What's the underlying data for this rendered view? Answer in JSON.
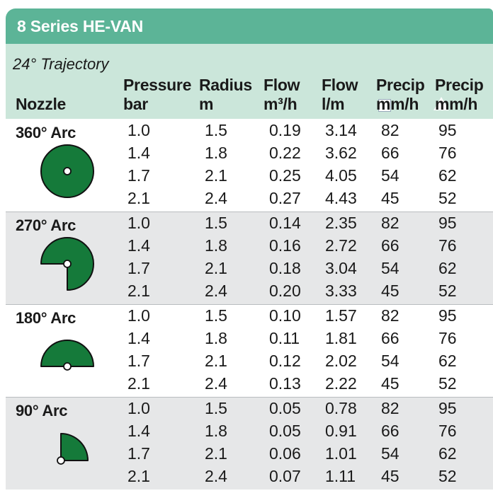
{
  "title": "8 Series HE-VAN",
  "trajectory": "24° Trajectory",
  "headers": {
    "nozzle": "Nozzle",
    "pressure": [
      "Pressure",
      "bar"
    ],
    "radius": [
      "Radius",
      "m"
    ],
    "flow_m3": [
      "Flow",
      "m³/h"
    ],
    "flow_lm": [
      "Flow",
      "l/m"
    ],
    "precip_square": [
      "Precip",
      "mm/h"
    ],
    "precip_triangle": [
      "Precip",
      "mm/h"
    ]
  },
  "groups": [
    {
      "label": "360° Arc",
      "icon": "full-circle-nozzle-icon",
      "rows": [
        [
          "1.0",
          "1.5",
          "0.19",
          "3.14",
          "82",
          "95"
        ],
        [
          "1.4",
          "1.8",
          "0.22",
          "3.62",
          "66",
          "76"
        ],
        [
          "1.7",
          "2.1",
          "0.25",
          "4.05",
          "54",
          "62"
        ],
        [
          "2.1",
          "2.4",
          "0.27",
          "4.43",
          "45",
          "52"
        ]
      ]
    },
    {
      "label": "270° Arc",
      "icon": "three-quarter-circle-nozzle-icon",
      "rows": [
        [
          "1.0",
          "1.5",
          "0.14",
          "2.35",
          "82",
          "95"
        ],
        [
          "1.4",
          "1.8",
          "0.16",
          "2.72",
          "66",
          "76"
        ],
        [
          "1.7",
          "2.1",
          "0.18",
          "3.04",
          "54",
          "62"
        ],
        [
          "2.1",
          "2.4",
          "0.20",
          "3.33",
          "45",
          "52"
        ]
      ]
    },
    {
      "label": "180° Arc",
      "icon": "half-circle-nozzle-icon",
      "rows": [
        [
          "1.0",
          "1.5",
          "0.10",
          "1.57",
          "82",
          "95"
        ],
        [
          "1.4",
          "1.8",
          "0.11",
          "1.81",
          "66",
          "76"
        ],
        [
          "1.7",
          "2.1",
          "0.12",
          "2.02",
          "54",
          "62"
        ],
        [
          "2.1",
          "2.4",
          "0.13",
          "2.22",
          "45",
          "52"
        ]
      ]
    },
    {
      "label": "90° Arc",
      "icon": "quarter-circle-nozzle-icon",
      "rows": [
        [
          "1.0",
          "1.5",
          "0.05",
          "0.78",
          "82",
          "95"
        ],
        [
          "1.4",
          "1.8",
          "0.05",
          "0.91",
          "66",
          "76"
        ],
        [
          "1.7",
          "2.1",
          "0.06",
          "1.01",
          "54",
          "62"
        ],
        [
          "2.1",
          "2.4",
          "0.07",
          "1.11",
          "45",
          "52"
        ]
      ]
    }
  ],
  "colors": {
    "title_bar": "#5cb497",
    "header_band": "#cbe6da",
    "alt_row": "#e6e7e8",
    "nozzle_fill": "#157a3a"
  }
}
